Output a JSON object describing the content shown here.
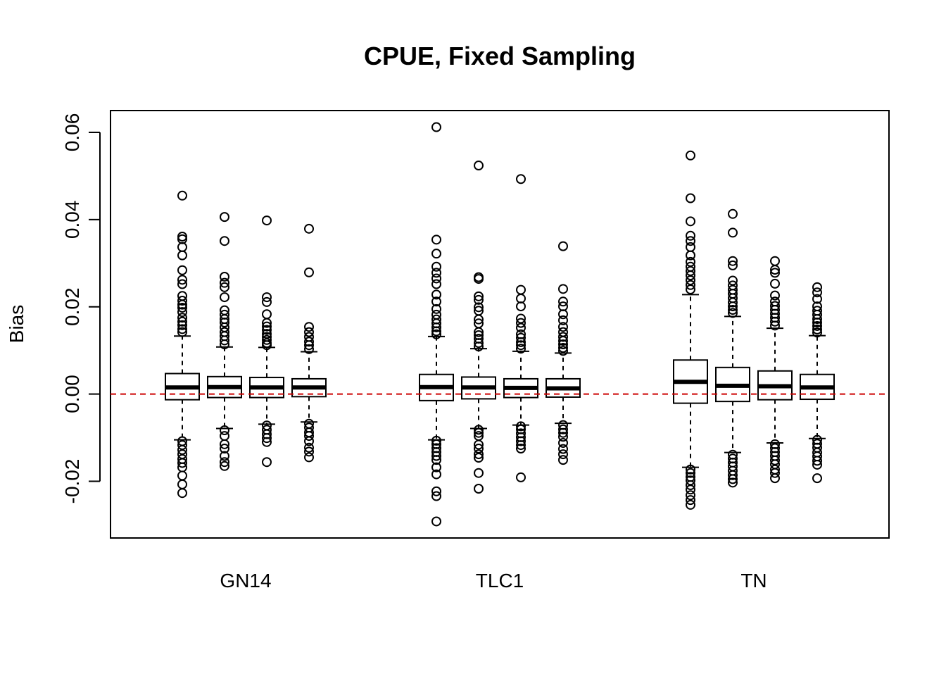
{
  "chart_data": {
    "type": "box",
    "title": "CPUE, Fixed Sampling",
    "xlabel": "",
    "ylabel": "Bias",
    "ylim": [
      -0.033,
      0.065
    ],
    "y_ticks": [
      -0.02,
      0.0,
      0.02,
      0.04,
      0.06
    ],
    "y_tick_labels": [
      "-0.02",
      "0.00",
      "0.02",
      "0.04",
      "0.06"
    ],
    "categories": [
      "GN14",
      "TLC1",
      "TN"
    ],
    "reference_line": {
      "y": 0.0,
      "color": "#cc0000",
      "style": "dashed"
    },
    "groups": [
      {
        "name": "GN14",
        "boxes": [
          {
            "whisker_low": -0.0105,
            "q1": -0.0013,
            "median": 0.0015,
            "q3": 0.0047,
            "whisker_high": 0.0133,
            "outliers": [
              0.0455,
              0.0361,
              0.0355,
              0.0337,
              0.0318,
              0.0284,
              0.0262,
              0.0252,
              0.0225,
              0.0214,
              0.0205,
              0.0198,
              0.0188,
              0.0175,
              0.0166,
              0.0158,
              0.0149,
              0.0142,
              -0.0108,
              -0.0117,
              -0.0128,
              -0.0138,
              -0.0149,
              -0.0158,
              -0.0168,
              -0.0187,
              -0.0207,
              -0.0227
            ]
          },
          {
            "whisker_low": -0.0079,
            "q1": -0.0008,
            "median": 0.0016,
            "q3": 0.004,
            "whisker_high": 0.0108,
            "outliers": [
              0.0406,
              0.0351,
              0.0269,
              0.0255,
              0.0245,
              0.0222,
              0.0192,
              0.0182,
              0.0172,
              0.0164,
              0.0153,
              0.0142,
              0.0133,
              0.0123,
              0.0114,
              -0.0083,
              -0.0096,
              -0.0115,
              -0.0125,
              -0.0142,
              -0.0156,
              -0.0165
            ]
          },
          {
            "whisker_low": -0.0069,
            "q1": -0.0008,
            "median": 0.0015,
            "q3": 0.0038,
            "whisker_high": 0.0107,
            "outliers": [
              0.0398,
              0.0222,
              0.0211,
              0.0183,
              0.0163,
              0.0155,
              0.0147,
              0.0138,
              0.0131,
              0.0124,
              0.0117,
              0.0112,
              -0.0072,
              -0.0082,
              -0.0092,
              -0.0101,
              -0.011,
              -0.0156
            ]
          },
          {
            "whisker_low": -0.0064,
            "q1": -0.0006,
            "median": 0.0015,
            "q3": 0.0035,
            "whisker_high": 0.0097,
            "outliers": [
              0.0379,
              0.0279,
              0.0154,
              0.0142,
              0.0131,
              0.012,
              0.0112,
              0.0103,
              -0.0068,
              -0.0077,
              -0.0088,
              -0.0096,
              -0.0108,
              -0.0123,
              -0.0132,
              -0.0145
            ]
          }
        ]
      },
      {
        "name": "TLC1",
        "boxes": [
          {
            "whisker_low": -0.0105,
            "q1": -0.0015,
            "median": 0.0016,
            "q3": 0.0045,
            "whisker_high": 0.0132,
            "outliers": [
              0.0612,
              0.0354,
              0.0322,
              0.0292,
              0.0278,
              0.0265,
              0.0252,
              0.0228,
              0.0212,
              0.0195,
              0.0182,
              0.0171,
              0.0162,
              0.0153,
              0.0144,
              0.0137,
              -0.0107,
              -0.0115,
              -0.0124,
              -0.0133,
              -0.0142,
              -0.0151,
              -0.0168,
              -0.0184,
              -0.0223,
              -0.0234,
              -0.0292
            ]
          },
          {
            "whisker_low": -0.0079,
            "q1": -0.0011,
            "median": 0.0015,
            "q3": 0.0039,
            "whisker_high": 0.0104,
            "outliers": [
              0.0524,
              0.0268,
              0.0264,
              0.0224,
              0.0216,
              0.0199,
              0.0191,
              0.0171,
              0.0162,
              0.0142,
              0.0135,
              0.0127,
              0.0117,
              0.0109,
              -0.0082,
              -0.0089,
              -0.0096,
              -0.0116,
              -0.0125,
              -0.0138,
              -0.0146,
              -0.0181,
              -0.0217
            ]
          },
          {
            "whisker_low": -0.0071,
            "q1": -0.0008,
            "median": 0.0014,
            "q3": 0.0035,
            "whisker_high": 0.0098,
            "outliers": [
              0.0493,
              0.0239,
              0.0219,
              0.0201,
              0.0173,
              0.0163,
              0.0152,
              0.0137,
              0.0129,
              0.0119,
              0.0112,
              0.0104,
              -0.0074,
              -0.0081,
              -0.009,
              -0.0099,
              -0.0108,
              -0.0117,
              -0.0125,
              -0.0191
            ]
          },
          {
            "whisker_low": -0.0067,
            "q1": -0.0007,
            "median": 0.0013,
            "q3": 0.0035,
            "whisker_high": 0.0094,
            "outliers": [
              0.0339,
              0.0241,
              0.0212,
              0.0201,
              0.0183,
              0.0169,
              0.0154,
              0.0142,
              0.0131,
              0.0122,
              0.0114,
              0.0106,
              0.0099,
              -0.0071,
              -0.0081,
              -0.0089,
              -0.0098,
              -0.0112,
              -0.0126,
              -0.0138,
              -0.0151
            ]
          }
        ]
      },
      {
        "name": "TN",
        "boxes": [
          {
            "whisker_low": -0.0168,
            "q1": -0.0021,
            "median": 0.0028,
            "q3": 0.0078,
            "whisker_high": 0.0228,
            "outliers": [
              0.0547,
              0.0449,
              0.0396,
              0.0363,
              0.0351,
              0.0337,
              0.0318,
              0.0303,
              0.0292,
              0.0282,
              0.0272,
              0.0261,
              0.025,
              0.024,
              -0.0173,
              -0.0181,
              -0.019,
              -0.0198,
              -0.0209,
              -0.0219,
              -0.0232,
              -0.0243,
              -0.0254
            ]
          },
          {
            "whisker_low": -0.0134,
            "q1": -0.0017,
            "median": 0.0019,
            "q3": 0.0061,
            "whisker_high": 0.0178,
            "outliers": [
              0.0413,
              0.037,
              0.0305,
              0.0295,
              0.026,
              0.0249,
              0.0239,
              0.023,
              0.022,
              0.021,
              0.0201,
              0.0193,
              0.0186,
              -0.0139,
              -0.0148,
              -0.0157,
              -0.0166,
              -0.0176,
              -0.0186,
              -0.0195,
              -0.0203
            ]
          },
          {
            "whisker_low": -0.0112,
            "q1": -0.0013,
            "median": 0.0018,
            "q3": 0.0053,
            "whisker_high": 0.0151,
            "outliers": [
              0.0305,
              0.0285,
              0.0278,
              0.0253,
              0.0226,
              0.0212,
              0.0202,
              0.0193,
              0.0184,
              0.0175,
              0.0166,
              0.0157,
              -0.0115,
              -0.0124,
              -0.0133,
              -0.0142,
              -0.0152,
              -0.0161,
              -0.0173,
              -0.0181,
              -0.0193
            ]
          },
          {
            "whisker_low": -0.0102,
            "q1": -0.0012,
            "median": 0.0015,
            "q3": 0.0045,
            "whisker_high": 0.0134,
            "outliers": [
              0.0245,
              0.0233,
              0.0218,
              0.0201,
              0.0191,
              0.0182,
              0.0172,
              0.0164,
              0.0156,
              0.0148,
              0.0141,
              -0.0105,
              -0.0114,
              -0.0123,
              -0.0134,
              -0.0143,
              -0.0153,
              -0.0162,
              -0.0193
            ]
          }
        ]
      }
    ]
  }
}
